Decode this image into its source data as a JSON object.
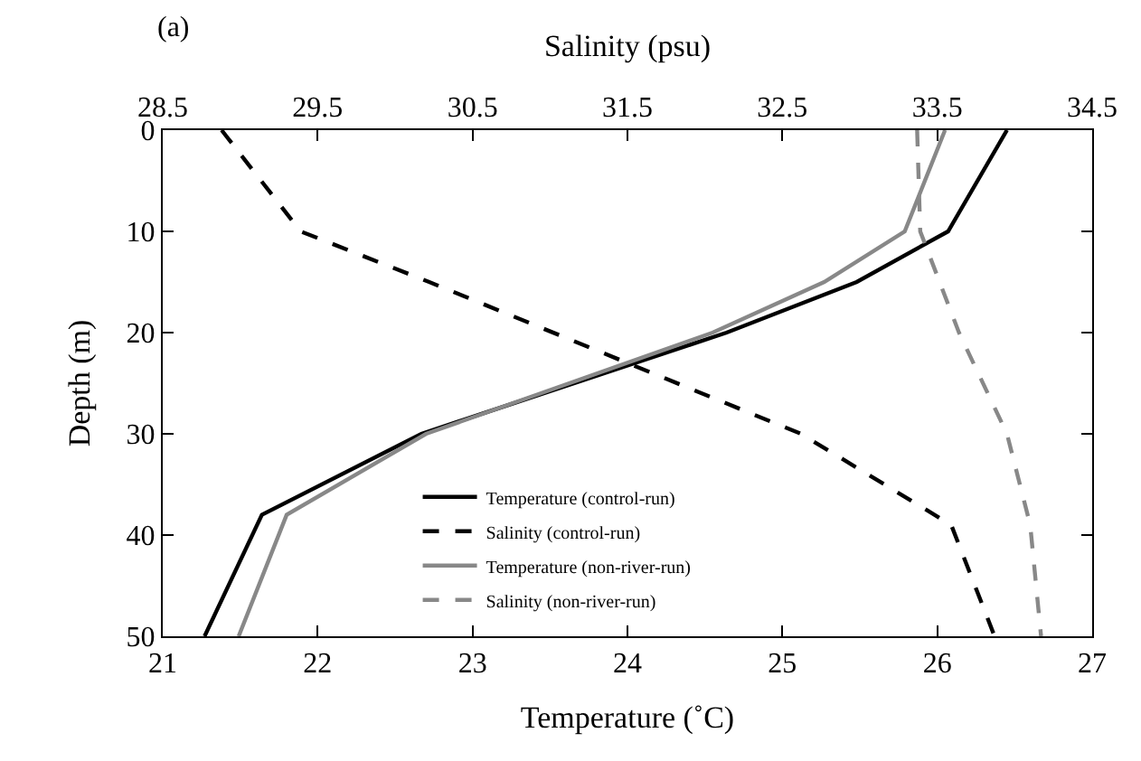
{
  "chart_data": {
    "type": "line",
    "orientation": "horizontal",
    "xlabel": "Temperature (˚C)",
    "x2label": "Salinity (psu)",
    "ylabel": "Depth (m)",
    "annotations": [
      "(a)"
    ],
    "xlim": [
      21,
      27
    ],
    "xticks": [
      21,
      22,
      23,
      24,
      25,
      26,
      27
    ],
    "x2lim": [
      28.5,
      34.5
    ],
    "x2ticks": [
      28.5,
      29.5,
      30.5,
      31.5,
      32.5,
      33.5,
      34.5
    ],
    "ylim": [
      50,
      0
    ],
    "yticks": [
      0,
      10,
      20,
      30,
      40,
      50
    ],
    "grid": false,
    "legend": "bottom",
    "marker": "none",
    "series": [
      {
        "name": "Temperature (control-run)",
        "color": "#000000",
        "line_style": "solid",
        "x": [
          0,
          10,
          15,
          20,
          30,
          38,
          50
        ],
        "values": [
          26.45,
          26.07,
          25.48,
          24.64,
          22.67,
          21.64,
          21.27
        ]
      },
      {
        "name": "Salinity (control-run)",
        "color": "#000000",
        "line_style": "dashed",
        "axis": "x2",
        "x": [
          0,
          10,
          15,
          30,
          39,
          50
        ],
        "values": [
          28.88,
          29.39,
          30.22,
          32.62,
          33.59,
          33.87
        ]
      },
      {
        "name": "Temperature (non-river-run)",
        "color": "#888888",
        "line_style": "solid",
        "x": [
          0,
          10,
          15,
          20,
          30,
          38,
          50
        ],
        "values": [
          26.05,
          25.79,
          25.27,
          24.55,
          22.7,
          21.8,
          21.49
        ]
      },
      {
        "name": "Salinity (non-river-run)",
        "color": "#888888",
        "line_style": "dashed",
        "axis": "x2",
        "x": [
          0,
          10,
          20,
          30,
          39,
          50
        ],
        "values": [
          33.37,
          33.39,
          33.64,
          33.95,
          34.1,
          34.17
        ]
      }
    ]
  }
}
